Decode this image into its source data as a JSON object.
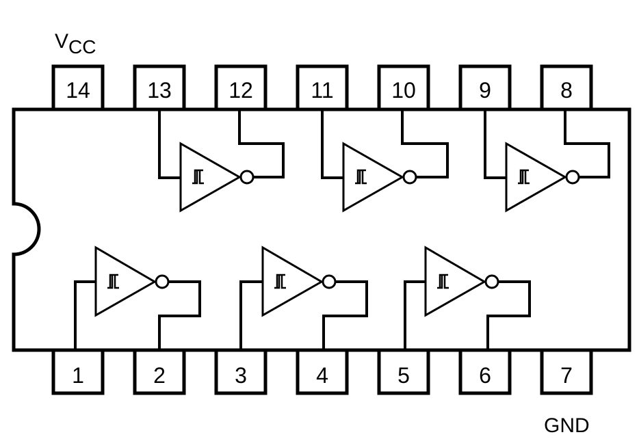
{
  "power": {
    "vcc_main": "V",
    "vcc_sub": "CC",
    "gnd": "GND"
  },
  "pins": {
    "top": [
      "14",
      "13",
      "12",
      "11",
      "10",
      "9",
      "8"
    ],
    "bottom": [
      "1",
      "2",
      "3",
      "4",
      "5",
      "6",
      "7"
    ]
  },
  "colors": {
    "line": "#000000",
    "background": "#ffffff"
  }
}
